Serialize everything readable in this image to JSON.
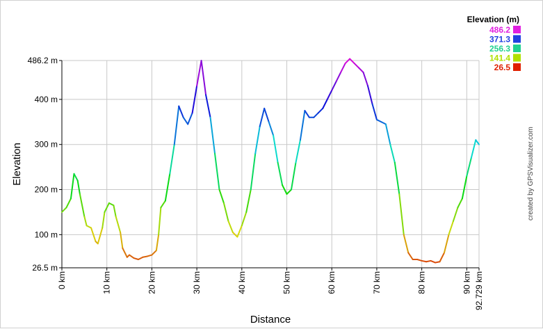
{
  "chart_data": {
    "type": "line",
    "title": "",
    "xlabel": "Distance",
    "ylabel": "Elevation",
    "xlim": [
      0,
      92.729
    ],
    "ylim": [
      26.5,
      486.2
    ],
    "x_unit": "km",
    "y_unit": "m",
    "grid": true,
    "x_ticks": [
      {
        "value": 0,
        "label": "0 km"
      },
      {
        "value": 10,
        "label": "10 km"
      },
      {
        "value": 20,
        "label": "20 km"
      },
      {
        "value": 30,
        "label": "30 km"
      },
      {
        "value": 40,
        "label": "40 km"
      },
      {
        "value": 50,
        "label": "50 km"
      },
      {
        "value": 60,
        "label": "60 km"
      },
      {
        "value": 70,
        "label": "70 km"
      },
      {
        "value": 80,
        "label": "80 km"
      },
      {
        "value": 90,
        "label": "90 km"
      },
      {
        "value": 92.729,
        "label": "92.729 km"
      }
    ],
    "y_ticks": [
      {
        "value": 26.5,
        "label": "26.5 m"
      },
      {
        "value": 100,
        "label": "100 m"
      },
      {
        "value": 200,
        "label": "200 m"
      },
      {
        "value": 300,
        "label": "300 m"
      },
      {
        "value": 400,
        "label": "400 m"
      },
      {
        "value": 486.2,
        "label": "486.2 m"
      }
    ],
    "legend": {
      "title": "Elevation (m)",
      "position": "top-right",
      "entries": [
        {
          "label": "486.2",
          "color": "#e020e0"
        },
        {
          "label": "371.3",
          "color": "#2040e0"
        },
        {
          "label": "256.3",
          "color": "#20d090"
        },
        {
          "label": "141.4",
          "color": "#b0e000"
        },
        {
          "label": "26.5",
          "color": "#e02000"
        }
      ]
    },
    "series": [
      {
        "x": [
          0,
          1,
          2,
          2.7,
          3.5,
          4,
          5,
          5.5,
          6.5,
          7.5,
          8,
          9,
          9.5,
          10.5,
          11.5,
          12,
          13,
          13.5,
          14.5,
          15,
          16,
          17,
          18,
          19,
          20,
          21,
          21.5,
          22,
          23,
          24,
          25,
          26,
          27,
          28,
          29,
          30,
          31,
          32,
          33,
          34,
          35,
          36,
          37,
          38,
          39,
          40,
          41,
          42,
          43,
          44,
          45,
          46,
          47,
          48,
          49,
          50,
          51,
          52,
          53,
          54,
          55,
          56,
          57,
          58,
          59,
          60,
          61,
          62,
          63,
          64,
          65,
          66,
          67,
          68,
          69,
          70,
          71,
          72,
          73,
          74,
          75,
          76,
          77,
          78,
          79,
          80,
          81,
          82,
          83,
          84,
          85,
          86,
          87,
          88,
          89,
          90,
          91,
          92,
          92.729
        ],
        "y": [
          150,
          160,
          180,
          235,
          220,
          190,
          140,
          120,
          115,
          85,
          80,
          115,
          150,
          170,
          165,
          140,
          105,
          70,
          50,
          55,
          48,
          45,
          50,
          52,
          55,
          65,
          100,
          160,
          175,
          235,
          300,
          385,
          360,
          345,
          370,
          430,
          486,
          410,
          360,
          280,
          200,
          170,
          130,
          105,
          95,
          120,
          150,
          200,
          280,
          340,
          380,
          350,
          320,
          260,
          210,
          190,
          200,
          260,
          310,
          375,
          360,
          360,
          370,
          380,
          400,
          420,
          440,
          460,
          480,
          490,
          480,
          470,
          460,
          430,
          390,
          355,
          350,
          345,
          300,
          260,
          190,
          100,
          60,
          45,
          45,
          42,
          40,
          42,
          38,
          40,
          60,
          100,
          130,
          160,
          180,
          230,
          270,
          310,
          300
        ]
      }
    ]
  },
  "credit": "created by GPSVisualizer.com"
}
